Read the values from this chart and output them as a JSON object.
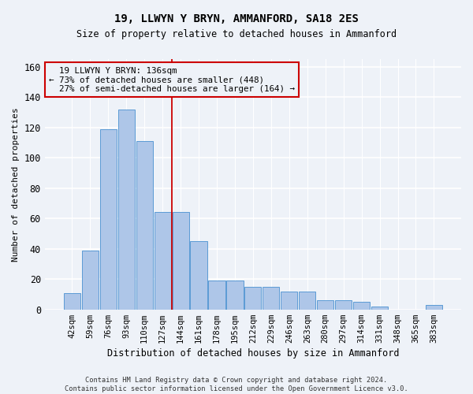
{
  "title_line1": "19, LLWYN Y BRYN, AMMANFORD, SA18 2ES",
  "title_line2": "Size of property relative to detached houses in Ammanford",
  "xlabel": "Distribution of detached houses by size in Ammanford",
  "ylabel": "Number of detached properties",
  "categories": [
    "42sqm",
    "59sqm",
    "76sqm",
    "93sqm",
    "110sqm",
    "127sqm",
    "144sqm",
    "161sqm",
    "178sqm",
    "195sqm",
    "212sqm",
    "229sqm",
    "246sqm",
    "263sqm",
    "280sqm",
    "297sqm",
    "314sqm",
    "331sqm",
    "348sqm",
    "365sqm",
    "383sqm"
  ],
  "values": [
    11,
    39,
    119,
    132,
    111,
    64,
    64,
    45,
    19,
    19,
    15,
    15,
    12,
    12,
    6,
    6,
    5,
    2,
    0,
    0,
    3
  ],
  "bar_color": "#aec6e8",
  "bar_edge_color": "#5b9bd5",
  "vline_x": 5.5,
  "annotation_text": "  19 LLWYN Y BRYN: 136sqm\n← 73% of detached houses are smaller (448)\n  27% of semi-detached houses are larger (164) →",
  "vline_color": "#cc0000",
  "annotation_box_edgecolor": "#cc0000",
  "ylim": [
    0,
    165
  ],
  "yticks": [
    0,
    20,
    40,
    60,
    80,
    100,
    120,
    140,
    160
  ],
  "footer": "Contains HM Land Registry data © Crown copyright and database right 2024.\nContains public sector information licensed under the Open Government Licence v3.0.",
  "bg_color": "#eef2f8",
  "grid_color": "#ffffff"
}
